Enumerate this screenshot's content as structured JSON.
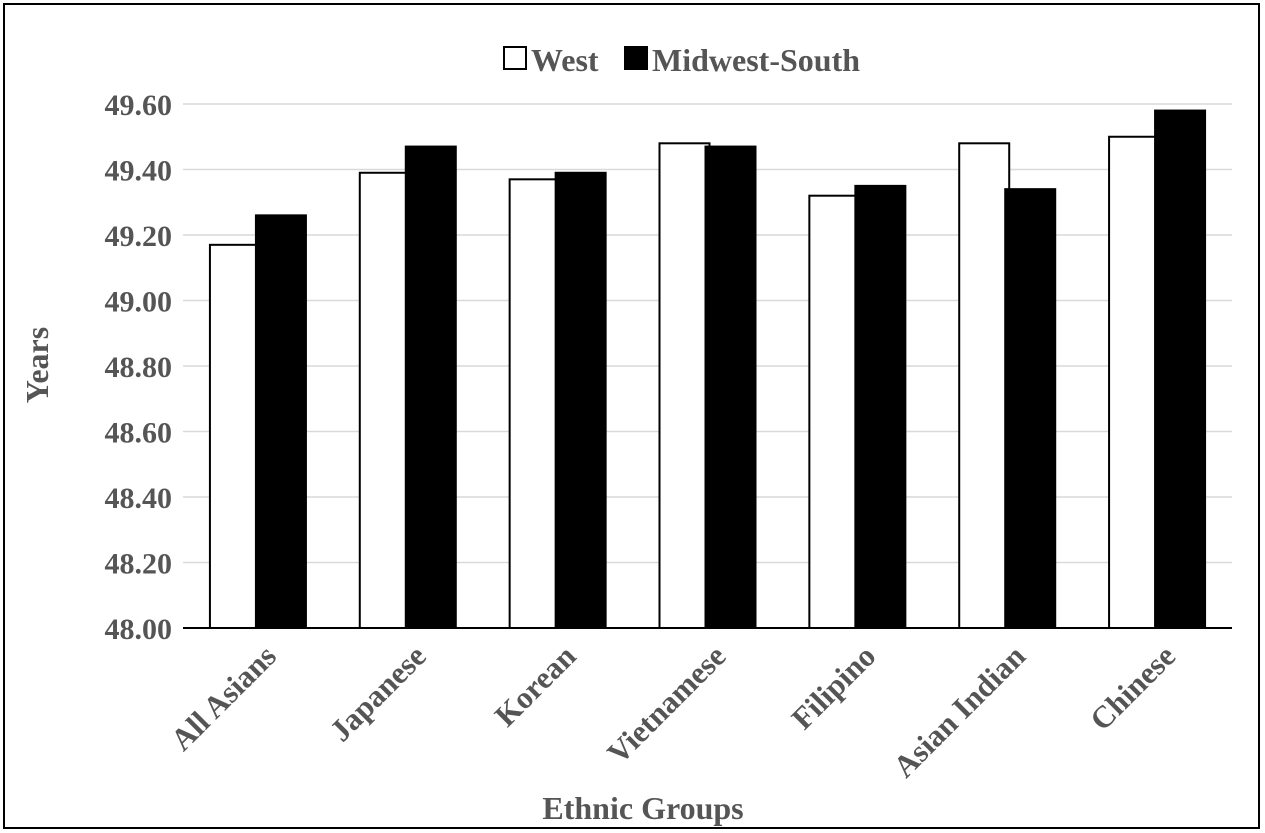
{
  "chart_data": {
    "type": "bar",
    "xlabel": "Ethnic Groups",
    "ylabel": "Years",
    "categories": [
      "All Asians",
      "Japanese",
      "Korean",
      "Vietnamese",
      "Filipino",
      "Asian Indian",
      "Chinese"
    ],
    "series": [
      {
        "name": "West",
        "color": "#ffffff",
        "values": [
          49.17,
          49.39,
          49.37,
          49.48,
          49.32,
          49.48,
          49.5
        ]
      },
      {
        "name": "Midwest-South",
        "color": "#000000",
        "values": [
          49.26,
          49.47,
          49.39,
          49.47,
          49.35,
          49.34,
          49.58
        ]
      }
    ],
    "ylim": [
      48.0,
      49.6
    ],
    "yticks": [
      "48.00",
      "48.20",
      "48.40",
      "48.60",
      "48.80",
      "49.00",
      "49.20",
      "49.40",
      "49.60"
    ],
    "grid": true,
    "legend_position": "top-center"
  }
}
